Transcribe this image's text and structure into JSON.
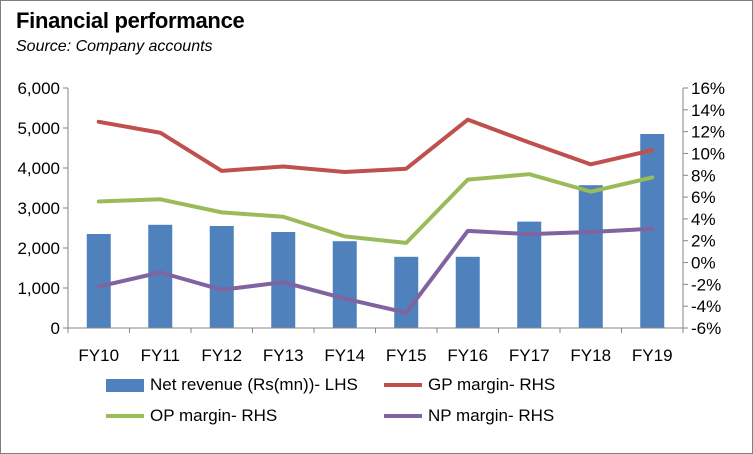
{
  "title": "Financial performance",
  "subtitle": "Source: Company accounts",
  "colors": {
    "bar": "#4f81bd",
    "gp": "#c0504d",
    "op": "#9bbb59",
    "np": "#8064a2",
    "axis": "#868686"
  },
  "chart_data": {
    "type": "bar+line",
    "categories": [
      "FY10",
      "FY11",
      "FY12",
      "FY13",
      "FY14",
      "FY15",
      "FY16",
      "FY17",
      "FY18",
      "FY19"
    ],
    "left_axis": {
      "min": 0,
      "max": 6000,
      "step": 1000,
      "tick_labels": [
        "0",
        "1,000",
        "2,000",
        "3,000",
        "4,000",
        "5,000",
        "6,000"
      ]
    },
    "right_axis": {
      "min": -6,
      "max": 16,
      "step": 2,
      "tick_labels": [
        "-6%",
        "-4%",
        "-2%",
        "0%",
        "2%",
        "4%",
        "6%",
        "8%",
        "10%",
        "12%",
        "14%",
        "16%"
      ]
    },
    "bar_series": {
      "name": "Net revenue (Rs(mn))- LHS",
      "axis": "left",
      "values": [
        2350,
        2580,
        2550,
        2400,
        2170,
        1780,
        1780,
        2660,
        3570,
        4850
      ]
    },
    "line_series": [
      {
        "name": "GP margin- RHS",
        "axis": "right",
        "color_key": "gp",
        "values": [
          12.9,
          11.9,
          8.4,
          8.8,
          8.3,
          8.6,
          13.1,
          11.0,
          9.0,
          10.3
        ]
      },
      {
        "name": "OP margin- RHS",
        "axis": "right",
        "color_key": "op",
        "values": [
          5.6,
          5.8,
          4.6,
          4.2,
          2.4,
          1.8,
          7.6,
          8.1,
          6.5,
          7.8
        ]
      },
      {
        "name": "NP margin- RHS",
        "axis": "right",
        "color_key": "np",
        "values": [
          -2.2,
          -0.9,
          -2.5,
          -1.8,
          -3.3,
          -4.6,
          2.9,
          2.6,
          2.8,
          3.1
        ]
      }
    ],
    "legend": [
      {
        "label": "Net revenue (Rs(mn))- LHS",
        "kind": "bar",
        "color_key": "bar"
      },
      {
        "label": "GP margin- RHS",
        "kind": "line",
        "color_key": "gp"
      },
      {
        "label": "OP margin- RHS",
        "kind": "line",
        "color_key": "op"
      },
      {
        "label": "NP margin- RHS",
        "kind": "line",
        "color_key": "np"
      }
    ],
    "legend_position": "bottom",
    "grid": false
  }
}
